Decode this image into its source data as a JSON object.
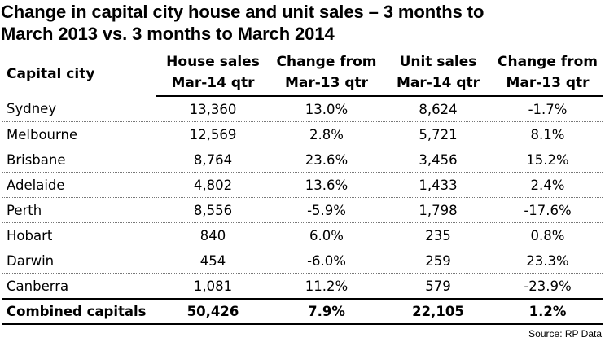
{
  "title_line1": "Change in capital city house and unit sales – 3 months to",
  "title_line2": "March 2013 vs. 3 months to March 2014",
  "chart_data": {
    "type": "table",
    "columns": {
      "city": "Capital city",
      "house_sales": [
        "House sales",
        "Mar-14 qtr"
      ],
      "house_change": [
        "Change from",
        "Mar-13 qtr"
      ],
      "unit_sales": [
        "Unit sales",
        "Mar-14 qtr"
      ],
      "unit_change": [
        "Change from",
        "Mar-13 qtr"
      ]
    },
    "rows": [
      {
        "city": "Sydney",
        "house_sales": "13,360",
        "house_change": "13.0%",
        "unit_sales": "8,624",
        "unit_change": "-1.7%"
      },
      {
        "city": "Melbourne",
        "house_sales": "12,569",
        "house_change": "2.8%",
        "unit_sales": "5,721",
        "unit_change": "8.1%"
      },
      {
        "city": "Brisbane",
        "house_sales": "8,764",
        "house_change": "23.6%",
        "unit_sales": "3,456",
        "unit_change": "15.2%"
      },
      {
        "city": "Adelaide",
        "house_sales": "4,802",
        "house_change": "13.6%",
        "unit_sales": "1,433",
        "unit_change": "2.4%"
      },
      {
        "city": "Perth",
        "house_sales": "8,556",
        "house_change": "-5.9%",
        "unit_sales": "1,798",
        "unit_change": "-17.6%"
      },
      {
        "city": "Hobart",
        "house_sales": "840",
        "house_change": "6.0%",
        "unit_sales": "235",
        "unit_change": "0.8%"
      },
      {
        "city": "Darwin",
        "house_sales": "454",
        "house_change": "-6.0%",
        "unit_sales": "259",
        "unit_change": "23.3%"
      },
      {
        "city": "Canberra",
        "house_sales": "1,081",
        "house_change": "11.2%",
        "unit_sales": "579",
        "unit_change": "-23.9%"
      }
    ],
    "total": {
      "city": "Combined capitals",
      "house_sales": "50,426",
      "house_change": "7.9%",
      "unit_sales": "22,105",
      "unit_change": "1.2%"
    }
  },
  "source": "Source: RP Data"
}
